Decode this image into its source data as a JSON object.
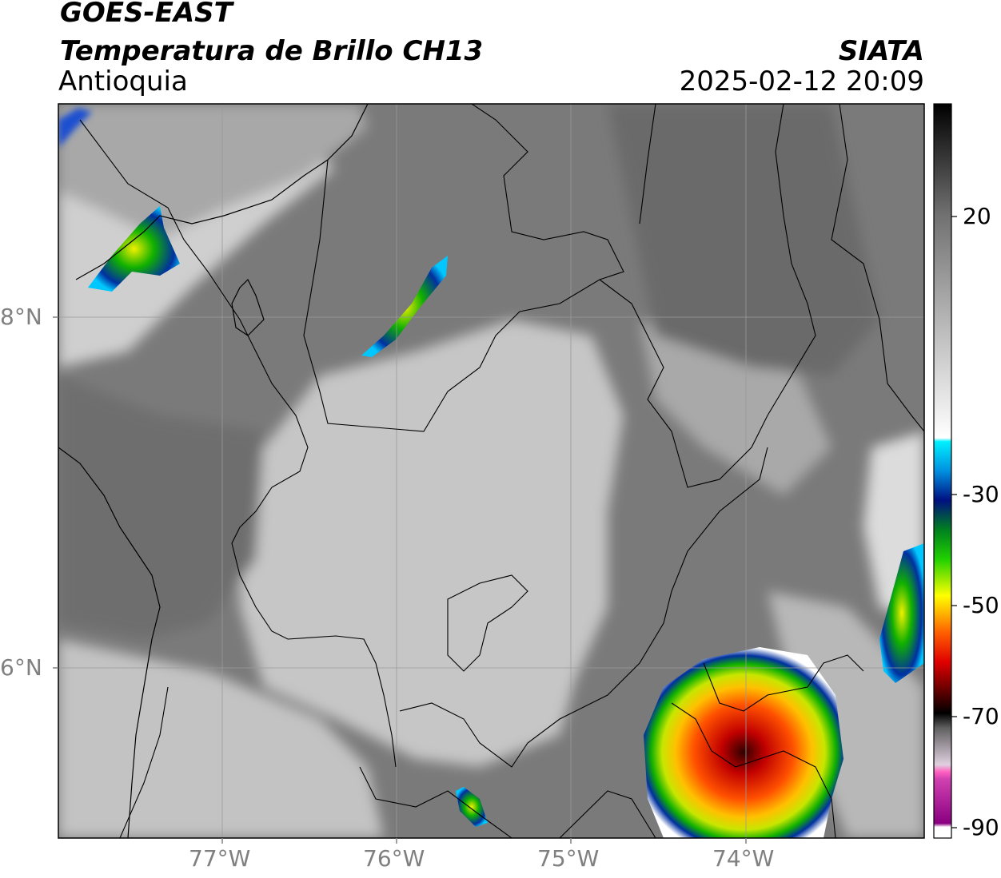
{
  "header": {
    "satellite": "GOES-EAST",
    "product": "Temperatura de Brillo CH13",
    "region": "Antioquia",
    "organization": "SIATA",
    "datetime": "2025-02-12 20:09"
  },
  "map": {
    "lat_labels": [
      "8°N",
      "6°N"
    ],
    "lon_labels": [
      "77°W",
      "76°W",
      "75°W",
      "74°W"
    ]
  },
  "colorbar": {
    "ticks": [
      "20",
      "-30",
      "-50",
      "-70",
      "-90"
    ]
  },
  "colors": {
    "cold_red": "#d40000",
    "cold_orange": "#ff8c00",
    "cold_yellow": "#f0f000",
    "cold_green": "#28c800",
    "cold_blue": "#0030a0",
    "cold_cyan": "#00c8ff",
    "magenta": "#b000b0"
  }
}
